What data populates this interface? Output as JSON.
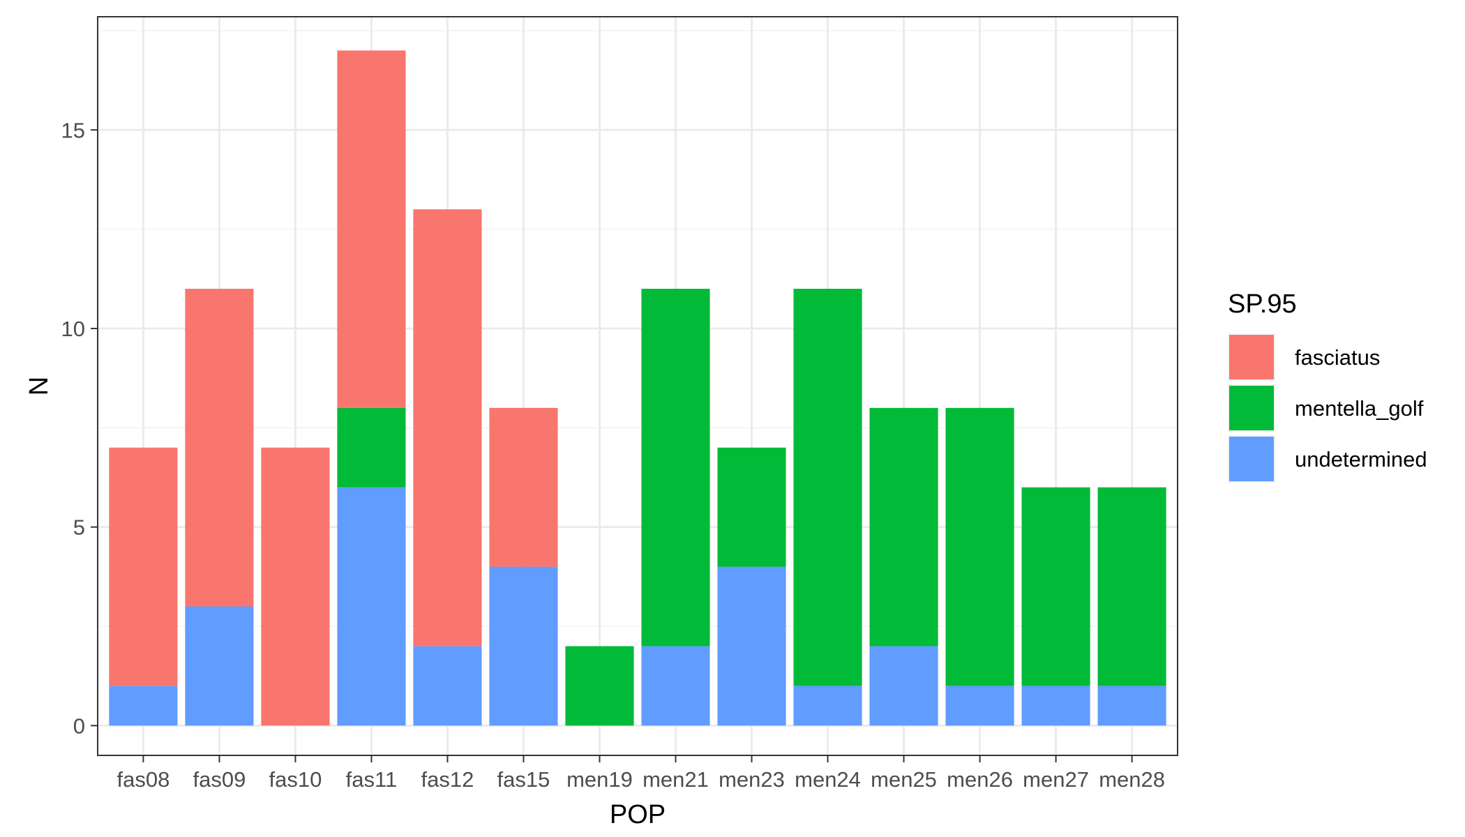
{
  "chart_data": {
    "type": "bar",
    "stacked": true,
    "categories": [
      "fas08",
      "fas09",
      "fas10",
      "fas11",
      "fas12",
      "fas15",
      "men19",
      "men21",
      "men23",
      "men24",
      "men25",
      "men26",
      "men27",
      "men28"
    ],
    "series": [
      {
        "name": "fasciatus",
        "color": "#F8766D",
        "values": [
          6,
          8,
          7,
          9,
          11,
          4,
          0,
          0,
          0,
          0,
          0,
          0,
          0,
          0
        ]
      },
      {
        "name": "mentella_golf",
        "color": "#00BA38",
        "values": [
          0,
          0,
          0,
          2,
          0,
          0,
          2,
          9,
          3,
          10,
          6,
          7,
          5,
          5
        ]
      },
      {
        "name": "undetermined",
        "color": "#619CFF",
        "values": [
          1,
          3,
          0,
          6,
          2,
          4,
          0,
          2,
          4,
          1,
          2,
          1,
          1,
          1
        ]
      }
    ],
    "stack_order": [
      "undetermined",
      "mentella_golf",
      "fasciatus"
    ],
    "title": "",
    "xlabel": "POP",
    "ylabel": "N",
    "ylim": [
      -0.75,
      17.85
    ],
    "yticks": [
      0,
      5,
      10,
      15
    ],
    "grid": true,
    "legend": {
      "title": "SP.95",
      "position": "right"
    }
  }
}
